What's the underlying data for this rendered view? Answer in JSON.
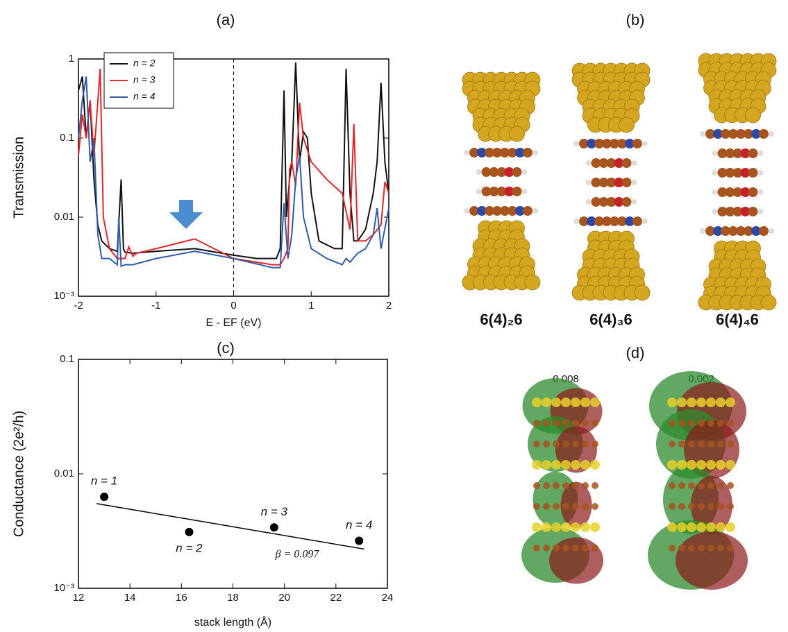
{
  "chart_data": [
    {
      "type": "line",
      "title": "(a)",
      "xlabel": "E - EF (eV)",
      "ylabel": "Transmission",
      "xlim": [
        -2,
        2
      ],
      "xticks": [
        -2,
        -1,
        0,
        1,
        2
      ],
      "ylim": [
        0.001,
        1
      ],
      "yticks": [
        {
          "value": 0.001,
          "label": "10⁻³"
        },
        0.01,
        0.1,
        1
      ],
      "ylog": true,
      "legend": "upper left",
      "vline": 0,
      "series": [
        {
          "name": "n = 2",
          "color": "#111111",
          "x": [
            -2,
            -1.95,
            -1.9,
            -1.85,
            -1.8,
            -1.75,
            -1.7,
            -1.6,
            -1.5,
            -1.45,
            -1.42,
            -1.4,
            -1.3,
            -1,
            -0.5,
            0,
            0.3,
            0.55,
            0.6,
            0.65,
            0.68,
            0.72,
            0.75,
            0.8,
            0.85,
            0.9,
            0.95,
            1,
            1.1,
            1.3,
            1.4,
            1.45,
            1.5,
            1.55,
            1.6,
            1.7,
            1.8,
            1.85,
            1.9,
            1.95,
            2
          ],
          "values": [
            0.4,
            0.6,
            0.1,
            0.3,
            0.03,
            0.008,
            0.005,
            0.004,
            0.0037,
            0.03,
            0.004,
            0.0036,
            0.0035,
            0.0037,
            0.004,
            0.0033,
            0.003,
            0.003,
            0.004,
            0.4,
            0.01,
            0.03,
            0.05,
            0.9,
            0.05,
            0.12,
            0.1,
            0.02,
            0.005,
            0.004,
            0.004,
            0.75,
            0.02,
            0.005,
            0.005,
            0.007,
            0.02,
            0.05,
            0.5,
            0.05,
            0.02
          ]
        },
        {
          "name": "n = 3",
          "color": "#e0262a",
          "x": [
            -2,
            -1.95,
            -1.9,
            -1.85,
            -1.8,
            -1.72,
            -1.68,
            -1.6,
            -1.5,
            -1.4,
            -1.35,
            -1.3,
            -1.25,
            -1,
            -0.5,
            0,
            0.5,
            0.6,
            0.65,
            0.7,
            0.72,
            0.75,
            0.8,
            0.85,
            0.9,
            1,
            1.2,
            1.4,
            1.5,
            1.55,
            1.6,
            1.7,
            1.8,
            1.9,
            1.95,
            2
          ],
          "values": [
            0.06,
            0.2,
            0.1,
            0.3,
            0.06,
            0.75,
            0.01,
            0.004,
            0.003,
            0.003,
            0.0042,
            0.0032,
            0.0035,
            0.004,
            0.0053,
            0.003,
            0.0025,
            0.0025,
            0.003,
            0.004,
            0.04,
            0.05,
            0.025,
            0.28,
            0.1,
            0.05,
            0.03,
            0.02,
            0.007,
            0.15,
            0.005,
            0.005,
            0.006,
            0.008,
            0.028,
            0.02
          ]
        },
        {
          "name": "n = 4",
          "color": "#2f5aa8",
          "x": [
            -2,
            -1.95,
            -1.9,
            -1.85,
            -1.8,
            -1.75,
            -1.7,
            -1.6,
            -1.5,
            -1.48,
            -1.45,
            -1.4,
            -1.3,
            -1,
            -0.5,
            0,
            0.5,
            0.6,
            0.65,
            0.7,
            0.75,
            0.8,
            0.85,
            0.9,
            1,
            1.2,
            1.4,
            1.45,
            1.5,
            1.6,
            1.7,
            1.8,
            1.85,
            1.9,
            2
          ],
          "values": [
            0.1,
            0.3,
            0.6,
            0.05,
            0.1,
            0.006,
            0.003,
            0.003,
            0.0025,
            0.01,
            0.0024,
            0.0025,
            0.0025,
            0.003,
            0.0037,
            0.003,
            0.0023,
            0.0023,
            0.015,
            0.003,
            0.006,
            0.03,
            0.06,
            0.01,
            0.004,
            0.003,
            0.0025,
            0.003,
            0.0027,
            0.0035,
            0.004,
            0.006,
            0.013,
            0.004,
            0.013
          ]
        }
      ]
    },
    {
      "type": "scatter",
      "title": "(c)",
      "xlabel": "stack length (Å)",
      "ylabel": "Conductance (2e²/h)",
      "xlim": [
        12,
        24
      ],
      "xticks": [
        12,
        14,
        16,
        18,
        20,
        22,
        24
      ],
      "ylim": [
        0.001,
        0.1
      ],
      "yticks": [
        {
          "value": 0.001,
          "label": "10⁻³"
        },
        0.01,
        0.1
      ],
      "ylog": true,
      "color": "#000000",
      "x": [
        13,
        16.3,
        19.6,
        22.9
      ],
      "values": [
        0.0063,
        0.0031,
        0.0034,
        0.0026
      ],
      "point_labels": [
        "n = 1",
        "n = 2",
        "n = 3",
        "n = 4"
      ],
      "fit": {
        "x": [
          12.7,
          23.1
        ],
        "values": [
          0.0055,
          0.0022
        ]
      },
      "annotation": "β = 0.097"
    }
  ],
  "panels": [
    {
      "title": "(b)",
      "captions": [
        "6(4)₂6",
        "6(4)₃6",
        "6(4)₄6"
      ]
    },
    {
      "title": "(d)",
      "captions": [
        "0.008",
        "0.002"
      ]
    }
  ]
}
